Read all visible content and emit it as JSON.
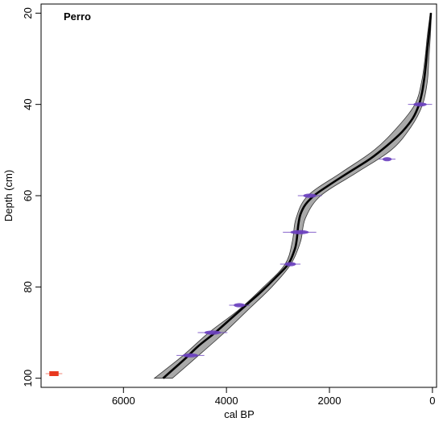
{
  "chart_data": {
    "type": "line",
    "title": "Perro",
    "xlabel": "cal BP",
    "ylabel": "Depth (cm)",
    "xlim": [
      7600,
      -80
    ],
    "ylim": [
      18,
      102
    ],
    "x_reversed": true,
    "y_reversed": true,
    "x_ticks": [
      6000,
      4000,
      2000,
      0
    ],
    "y_ticks": [
      20,
      40,
      60,
      80,
      100
    ],
    "grid": false,
    "colors": {
      "envelope": "#a9a9a9",
      "median": "#000000",
      "dates": "#6a3fbf",
      "outlier": "#e8381f"
    },
    "median": {
      "depth": [
        20,
        22,
        25,
        28,
        31,
        34,
        37,
        40,
        43,
        46,
        49,
        52,
        55,
        58,
        60,
        62,
        64,
        66,
        68,
        70,
        72,
        75,
        78,
        81,
        84,
        87,
        90,
        93,
        96,
        100
      ],
      "age": [
        30,
        45,
        70,
        100,
        125,
        155,
        195,
        260,
        380,
        590,
        880,
        1220,
        1640,
        2050,
        2300,
        2470,
        2560,
        2600,
        2620,
        2640,
        2680,
        2800,
        3050,
        3320,
        3620,
        3920,
        4220,
        4550,
        4830,
        5230
      ]
    },
    "envelope": {
      "depth": [
        20,
        25,
        30,
        35,
        40,
        45,
        50,
        55,
        60,
        65,
        70,
        75,
        80,
        85,
        90,
        95,
        100
      ],
      "age_min": [
        20,
        40,
        70,
        100,
        190,
        420,
        800,
        1480,
        2170,
        2470,
        2560,
        2750,
        3120,
        3580,
        4040,
        4540,
        5050
      ],
      "age_max": [
        40,
        100,
        145,
        210,
        340,
        680,
        1130,
        1780,
        2420,
        2650,
        2720,
        2860,
        3280,
        3760,
        4340,
        4840,
        5400
      ]
    },
    "dates": [
      {
        "depth": 40,
        "age": 240,
        "err": 130
      },
      {
        "depth": 52,
        "age": 880,
        "err": 90
      },
      {
        "depth": 60,
        "age": 2380,
        "err": 130
      },
      {
        "depth": 68,
        "age": 2580,
        "err": 180
      },
      {
        "depth": 75,
        "age": 2760,
        "err": 110
      },
      {
        "depth": 84,
        "age": 3750,
        "err": 110
      },
      {
        "depth": 90,
        "age": 4270,
        "err": 160
      },
      {
        "depth": 95,
        "age": 4700,
        "err": 150
      }
    ],
    "outliers": [
      {
        "depth": 99,
        "age": 7350,
        "err": 90
      }
    ]
  }
}
